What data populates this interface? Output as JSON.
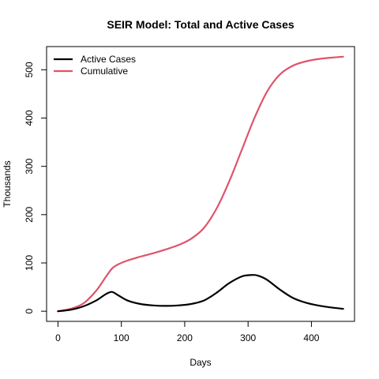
{
  "chart_data": {
    "type": "line",
    "title": "SEIR Model: Total and Active Cases",
    "xlabel": "Days",
    "ylabel": "Thousands",
    "xlim": [
      -18,
      468
    ],
    "ylim": [
      -21,
      548
    ],
    "xticks": [
      0,
      100,
      200,
      300,
      400
    ],
    "yticks": [
      0,
      100,
      200,
      300,
      400,
      500
    ],
    "grid": false,
    "legend_position": "top-left",
    "series": [
      {
        "name": "Active Cases",
        "color": "#000000",
        "x": [
          0,
          20,
          40,
          60,
          75,
          85,
          95,
          110,
          130,
          150,
          170,
          190,
          210,
          230,
          250,
          270,
          290,
          305,
          315,
          330,
          350,
          370,
          390,
          410,
          430,
          450
        ],
        "y": [
          0,
          3,
          10,
          22,
          35,
          40,
          33,
          22,
          15,
          12,
          11,
          12,
          15,
          22,
          38,
          58,
          72,
          75,
          74,
          65,
          45,
          28,
          18,
          12,
          8,
          5
        ]
      },
      {
        "name": "Cumulative",
        "color": "#DF536B",
        "x": [
          0,
          20,
          40,
          60,
          75,
          85,
          95,
          110,
          130,
          150,
          170,
          190,
          210,
          230,
          250,
          270,
          290,
          310,
          330,
          350,
          370,
          390,
          410,
          430,
          450
        ],
        "y": [
          0,
          5,
          16,
          42,
          70,
          88,
          97,
          105,
          113,
          120,
          128,
          137,
          150,
          172,
          212,
          268,
          334,
          400,
          455,
          490,
          508,
          517,
          522,
          525,
          527
        ]
      }
    ]
  }
}
